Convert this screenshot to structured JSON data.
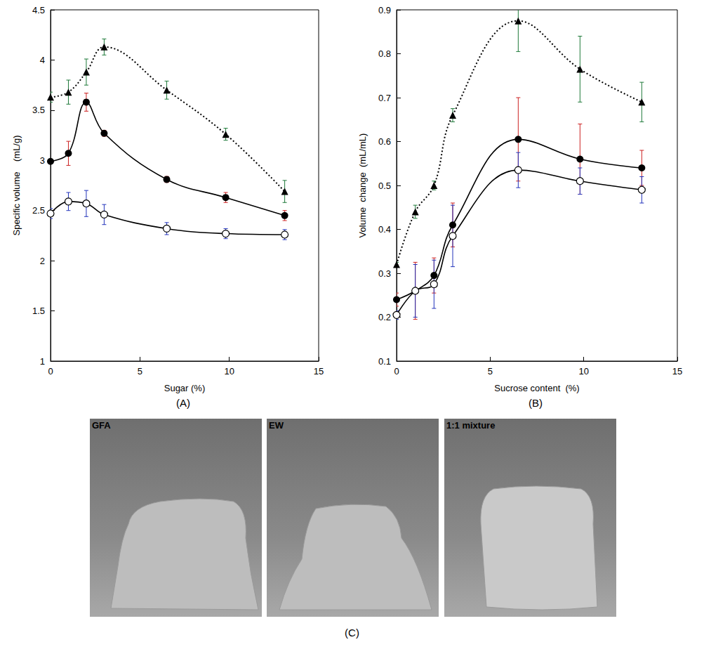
{
  "chart_data": [
    {
      "type": "line",
      "panel": "(A)",
      "x_label": "Sugar (%)",
      "y_label": "Specific volume    (mL/g)",
      "x": [
        0,
        1,
        2,
        3,
        6.5,
        9.8,
        13.1
      ],
      "xlim": [
        0,
        15
      ],
      "xticks": [
        0,
        5,
        10,
        15
      ],
      "ylim": [
        1,
        4.5
      ],
      "yticks": [
        1,
        1.5,
        2,
        2.5,
        3,
        3.5,
        4,
        4.5
      ],
      "grid": false,
      "series": [
        {
          "color": "#000000",
          "marker": "triangle",
          "line_style": "dotted",
          "values": [
            3.63,
            3.68,
            3.88,
            4.13,
            3.7,
            3.26,
            2.69
          ],
          "errors": [
            0.05,
            0.12,
            0.13,
            0.08,
            0.09,
            0.06,
            0.11
          ]
        },
        {
          "color": "#000000",
          "marker": "circle",
          "line_style": "solid",
          "values": [
            2.99,
            3.07,
            3.58,
            3.27,
            2.81,
            2.63,
            2.45
          ],
          "errors": [
            0.02,
            0.12,
            0.09,
            0.03,
            0.03,
            0.05,
            0.05
          ]
        },
        {
          "color": "#000000",
          "marker": "open_circle",
          "line_style": "solid",
          "values": [
            2.47,
            2.59,
            2.57,
            2.46,
            2.32,
            2.27,
            2.26
          ],
          "errors": [
            0.05,
            0.09,
            0.13,
            0.1,
            0.06,
            0.05,
            0.05
          ]
        }
      ]
    },
    {
      "type": "line",
      "panel": "(B)",
      "x_label": "Sucrose content  (%)",
      "y_label": "Volume  change  (mL/mL)",
      "x": [
        0,
        1,
        2,
        3,
        6.5,
        9.8,
        13.1
      ],
      "xlim": [
        0,
        15
      ],
      "xticks": [
        0,
        5,
        10,
        15
      ],
      "ylim": [
        0.1,
        0.9
      ],
      "yticks": [
        0.1,
        0.2,
        0.3,
        0.4,
        0.5,
        0.6,
        0.7,
        0.8,
        0.9
      ],
      "grid": false,
      "series": [
        {
          "color": "#000000",
          "marker": "triangle",
          "line_style": "dotted",
          "values": [
            0.32,
            0.44,
            0.5,
            0.66,
            0.875,
            0.765,
            0.69
          ],
          "errors": [
            0.005,
            0.015,
            0.01,
            0.015,
            0.07,
            0.075,
            0.045
          ]
        },
        {
          "color": "#000000",
          "marker": "circle",
          "line_style": "solid",
          "values": [
            0.24,
            0.26,
            0.295,
            0.41,
            0.605,
            0.56,
            0.54
          ],
          "errors": [
            0.015,
            0.065,
            0.04,
            0.05,
            0.095,
            0.08,
            0.04
          ]
        },
        {
          "color": "#000000",
          "marker": "open_circle",
          "line_style": "solid",
          "values": [
            0.205,
            0.26,
            0.275,
            0.385,
            0.535,
            0.51,
            0.49
          ],
          "errors": [
            0.01,
            0.06,
            0.055,
            0.07,
            0.04,
            0.03,
            0.03
          ]
        }
      ]
    }
  ],
  "photos": {
    "label": "(C)",
    "captions": [
      "GFA",
      "EW",
      "1:1 mixture"
    ]
  }
}
